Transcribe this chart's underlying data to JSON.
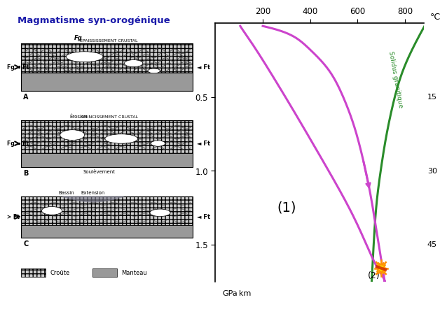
{
  "title": "Magmatisme syn-orogénique",
  "x_ticks": [
    200,
    400,
    600,
    800
  ],
  "y_ticks_gpa": [
    0.5,
    1.0,
    1.5
  ],
  "y_ticks_km": [
    "15",
    "30",
    "45"
  ],
  "x_range": [
    0,
    880
  ],
  "y_range": [
    0.0,
    1.75
  ],
  "solidus_label": "Solidus granitique",
  "label_1": "(1)",
  "label_2": "(2)",
  "purple": "#CC44CC",
  "green": "#2A8C2A",
  "star_orange": "#FF8C00",
  "star_yellow": "#FFD700",
  "star_red": "#CC2200",
  "bg": "#ffffff",
  "panel_left_bg": "#f8f8f8",
  "mantle_color": "#999999",
  "crust_color": "#cccccc",
  "crust_light": "#dddddd"
}
